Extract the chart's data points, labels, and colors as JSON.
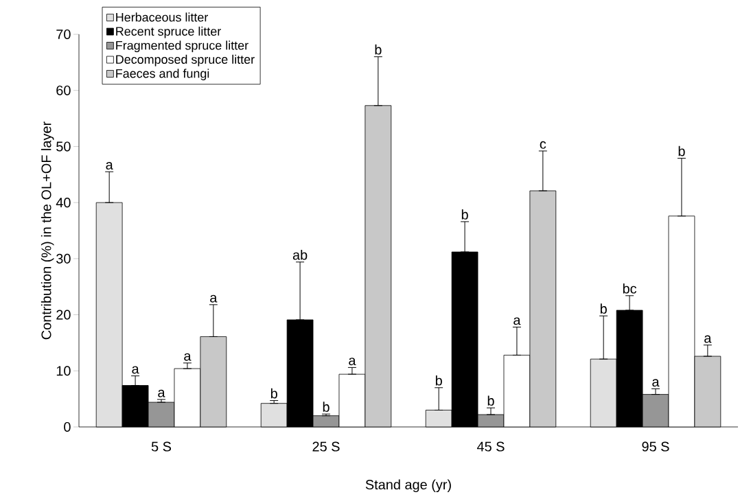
{
  "chart_data": {
    "type": "bar",
    "xlabel": "Stand age (yr)",
    "ylabel": "Contribution (%) in the OL+OF layer",
    "categories": [
      "5 S",
      "25 S",
      "45 S",
      "95 S"
    ],
    "ylim": [
      0,
      70
    ],
    "yticks": [
      0,
      10,
      20,
      30,
      40,
      50,
      60,
      70
    ],
    "grid": false,
    "legend": "top left",
    "series": [
      {
        "name": "Herbaceous litter",
        "color": "#e0e0e0",
        "values": [
          40.0,
          4.2,
          3.0,
          12.1
        ],
        "errors": [
          [
            40.0,
            45.5
          ],
          [
            4.2,
            4.7
          ],
          [
            3.0,
            7.0
          ],
          [
            12.1,
            19.8
          ]
        ]
      },
      {
        "name": "Recent spruce litter",
        "color": "#000000",
        "values": [
          7.4,
          19.1,
          31.2,
          20.8
        ],
        "errors": [
          [
            7.4,
            9.1
          ],
          [
            19.1,
            29.4
          ],
          [
            31.2,
            36.6
          ],
          [
            20.8,
            23.4
          ]
        ]
      },
      {
        "name": "Fragmented spruce litter",
        "color": "#969696",
        "values": [
          4.4,
          2.0,
          2.2,
          5.8
        ],
        "errors": [
          [
            4.4,
            4.9
          ],
          [
            2.0,
            2.3
          ],
          [
            2.2,
            3.4
          ],
          [
            5.8,
            6.8
          ]
        ]
      },
      {
        "name": "Decomposed spruce litter",
        "color": "#ffffff",
        "values": [
          10.4,
          9.4,
          12.8,
          37.6
        ],
        "errors": [
          [
            10.4,
            11.4
          ],
          [
            9.4,
            10.6
          ],
          [
            12.8,
            17.8
          ],
          [
            37.6,
            47.9
          ]
        ]
      },
      {
        "name": "Faeces and fungi",
        "color": "#c8c8c8",
        "values": [
          16.1,
          57.3,
          42.1,
          12.6
        ],
        "errors": [
          [
            16.1,
            21.8
          ],
          [
            57.3,
            66.0
          ],
          [
            42.1,
            49.2
          ],
          [
            12.6,
            14.6
          ]
        ]
      }
    ],
    "annotations": [
      "a",
      "a",
      "a",
      "a",
      "a",
      "b",
      "ab",
      "b",
      "a",
      "b",
      "b",
      "b",
      "b",
      "a",
      "c",
      "b",
      "bc",
      "a",
      "b",
      "a"
    ]
  }
}
